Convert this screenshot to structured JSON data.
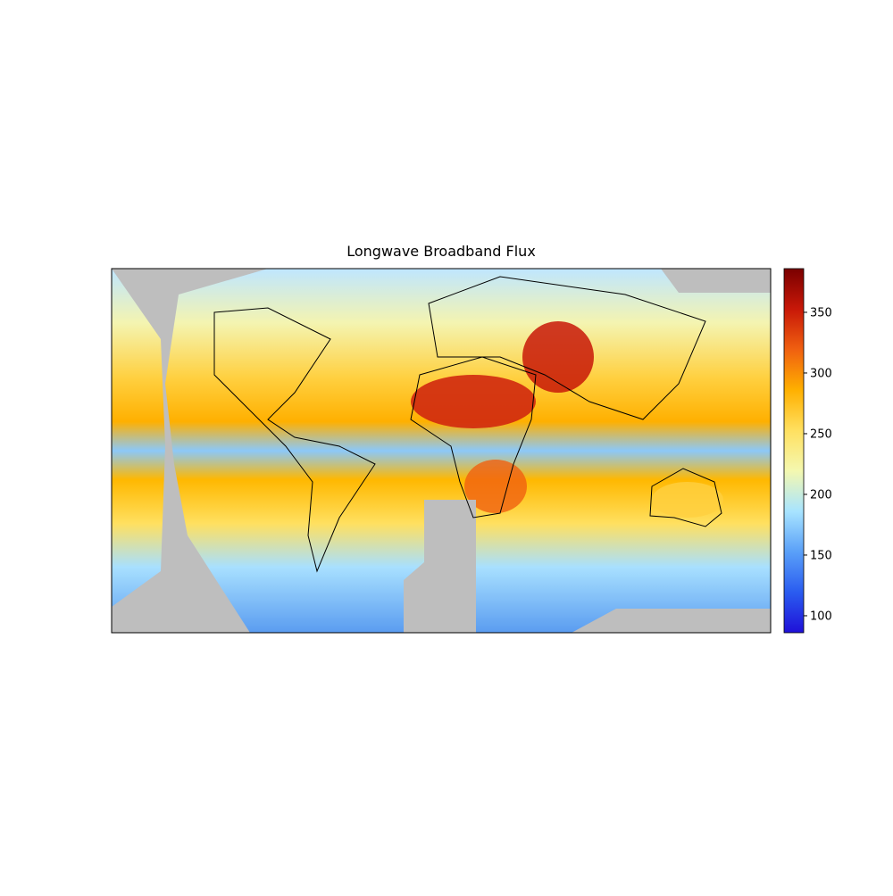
{
  "chart_data": {
    "type": "heatmap",
    "title": "Longwave Broadband Flux",
    "clim": [
      86,
      386
    ],
    "cticks": [
      100,
      150,
      200,
      250,
      300,
      350
    ],
    "colormap": [
      "#1f10d8",
      "#2a5cf0",
      "#5aa0f8",
      "#a8e4ff",
      "#f4f8b0",
      "#ffe060",
      "#ffb000",
      "#f06010",
      "#c81808",
      "#7a0000"
    ]
  }
}
